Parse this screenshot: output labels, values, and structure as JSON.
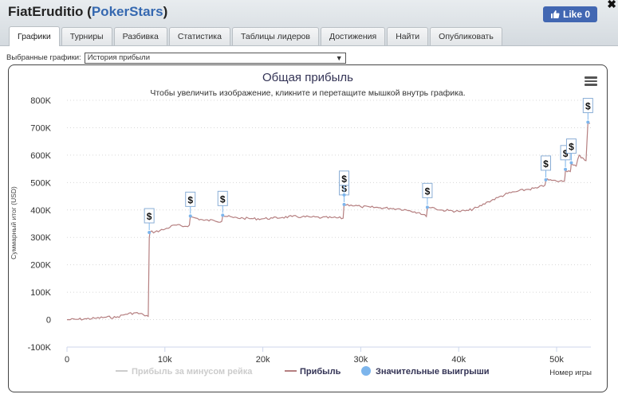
{
  "header": {
    "player": "FiatEruditio",
    "site": "PokerStars",
    "like_label": "Like 0",
    "close_label": "✖"
  },
  "tabs": [
    {
      "label": "Графики",
      "active": true
    },
    {
      "label": "Турниры"
    },
    {
      "label": "Разбивка"
    },
    {
      "label": "Статистика"
    },
    {
      "label": "Таблицы лидеров"
    },
    {
      "label": "Достижения"
    },
    {
      "label": "Найти"
    },
    {
      "label": "Опубликовать"
    }
  ],
  "selector": {
    "label": "Выбранные графики:",
    "value": "История прибыли"
  },
  "chart_data": {
    "type": "line",
    "title": "Общая прибыль",
    "subtitle": "Чтобы увеличить изображение, кликните и перетащите мышкой внутрь графика.",
    "ylabel": "Суммарный итог (USD)",
    "xlabel": "Номер игры",
    "xlim": [
      0,
      53500
    ],
    "ylim": [
      -100000,
      800000
    ],
    "x_ticks": [
      0,
      10000,
      20000,
      30000,
      40000,
      50000
    ],
    "x_tick_labels": [
      "0",
      "10k",
      "20k",
      "30k",
      "40k",
      "50k"
    ],
    "y_ticks": [
      -100000,
      0,
      100000,
      200000,
      300000,
      400000,
      500000,
      600000,
      700000,
      800000
    ],
    "y_tick_labels": [
      "-100K",
      "0",
      "100K",
      "200K",
      "300K",
      "400K",
      "500K",
      "600K",
      "700K",
      "800K"
    ],
    "grid": true,
    "legend_position": "bottom",
    "series": [
      {
        "name": "Прибыль за минусом рейка",
        "color": "#cccccc",
        "hidden": true,
        "x": [],
        "y": []
      },
      {
        "name": "Прибыль",
        "color": "#b57f80",
        "x": [
          0,
          1000,
          2000,
          3000,
          4000,
          5000,
          6000,
          7000,
          7800,
          8300,
          8400,
          8500,
          9000,
          10000,
          11000,
          12000,
          12500,
          12600,
          13000,
          14000,
          15000,
          15800,
          15900,
          17000,
          18000,
          19000,
          20000,
          21000,
          22000,
          23000,
          24000,
          25000,
          26000,
          27000,
          28200,
          28300,
          29000,
          30000,
          31000,
          32000,
          33000,
          34000,
          35000,
          36000,
          36700,
          36800,
          37500,
          38000,
          39000,
          40000,
          41000,
          42000,
          43000,
          44000,
          45000,
          46000,
          47000,
          48000,
          48800,
          48900,
          49500,
          50000,
          50800,
          50900,
          51400,
          51500,
          52000,
          52300,
          52500,
          52800,
          53000,
          53200,
          53400
        ],
        "y": [
          0,
          1000,
          3000,
          5000,
          9000,
          8000,
          20000,
          25000,
          18000,
          12000,
          300000,
          320000,
          320000,
          330000,
          345000,
          340000,
          345000,
          375000,
          372000,
          362000,
          362000,
          358000,
          380000,
          372000,
          370000,
          368000,
          368000,
          370000,
          373000,
          376000,
          375000,
          374000,
          372000,
          372000,
          370000,
          420000,
          418000,
          412000,
          410000,
          408000,
          406000,
          404000,
          398000,
          390000,
          376000,
          410000,
          408000,
          400000,
          398000,
          395000,
          398000,
          410000,
          430000,
          445000,
          460000,
          468000,
          475000,
          480000,
          490000,
          510000,
          508000,
          505000,
          505000,
          545000,
          540000,
          570000,
          560000,
          600000,
          590000,
          585000,
          580000,
          720000,
          715000
        ]
      },
      {
        "name": "Значительные выигрыши",
        "color": "#7cb5ec",
        "type": "scatter",
        "marker_label": "$",
        "x": [
          8400,
          12600,
          15900,
          28300,
          28300,
          36800,
          48900,
          50900,
          51500,
          53200
        ],
        "y": [
          318000,
          378000,
          381000,
          420000,
          455000,
          410000,
          510000,
          548000,
          572000,
          720000
        ]
      }
    ]
  }
}
